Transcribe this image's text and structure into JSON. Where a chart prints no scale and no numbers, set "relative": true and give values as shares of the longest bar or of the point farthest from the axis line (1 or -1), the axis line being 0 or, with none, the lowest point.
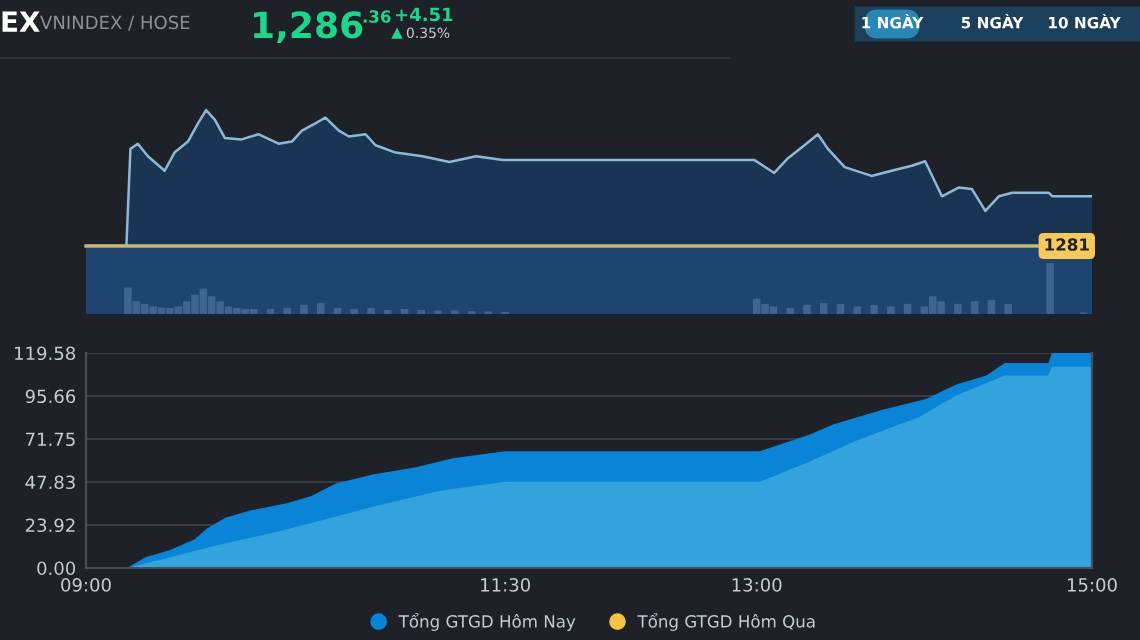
{
  "chart_data": [
    {
      "type": "other",
      "annotations": [
        "EX",
        "VNINDEX / HOSE",
        "1,286",
        ".36",
        "+4.51",
        "0.35%",
        "1 NGÀY",
        "5 NGÀY",
        "10 NGÀY"
      ]
    },
    {
      "type": "line",
      "relative": true,
      "xlim": [
        9,
        15
      ],
      "tick_labels": false,
      "annotations": [
        "1281"
      ],
      "series": [
        {
          "type": "area",
          "color": "#8fb8d6",
          "x": [
            9.0,
            9.241,
            9.265,
            9.309,
            9.369,
            9.469,
            9.528,
            9.608,
            9.668,
            9.716,
            9.768,
            9.828,
            9.928,
            10.028,
            10.148,
            10.228,
            10.288,
            10.368,
            10.428,
            10.508,
            10.568,
            10.667,
            10.727,
            10.847,
            11.007,
            11.167,
            11.327,
            11.487,
            12.985,
            13.105,
            13.185,
            13.285,
            13.365,
            13.425,
            13.525,
            13.685,
            13.805,
            13.925,
            14.005,
            14.105,
            14.204,
            14.284,
            14.364,
            14.444,
            14.524,
            14.743,
            14.764,
            15.0
          ],
          "values": [
            0,
            0,
            0.715,
            0.753,
            0.661,
            0.554,
            0.688,
            0.769,
            0.903,
            1,
            0.93,
            0.796,
            0.785,
            0.823,
            0.753,
            0.769,
            0.849,
            0.903,
            0.946,
            0.849,
            0.806,
            0.823,
            0.742,
            0.688,
            0.661,
            0.618,
            0.661,
            0.634,
            0.634,
            0.538,
            0.645,
            0.742,
            0.823,
            0.715,
            0.581,
            0.516,
            0.554,
            0.591,
            0.624,
            0.366,
            0.43,
            0.419,
            0.258,
            0.366,
            0.392,
            0.392,
            0.366,
            0.366
          ]
        }
      ]
    },
    {
      "type": "bar",
      "relative": true,
      "xlim": [
        9,
        15
      ],
      "tick_labels": false,
      "series": [
        {
          "color": "#3d6590",
          "x": [
            9.25,
            9.3,
            9.35,
            9.4,
            9.45,
            9.5,
            9.55,
            9.6,
            9.65,
            9.7,
            9.75,
            9.8,
            9.85,
            9.9,
            9.95,
            10.0,
            10.1,
            10.2,
            10.3,
            10.4,
            10.5,
            10.6,
            10.7,
            10.8,
            10.9,
            11.0,
            11.1,
            11.2,
            11.3,
            11.4,
            11.5,
            13.0,
            13.05,
            13.1,
            13.2,
            13.3,
            13.4,
            13.5,
            13.6,
            13.7,
            13.8,
            13.9,
            14.0,
            14.05,
            14.1,
            14.2,
            14.3,
            14.4,
            14.5,
            14.75,
            14.95
          ],
          "values": [
            0.52,
            0.25,
            0.2,
            0.15,
            0.13,
            0.12,
            0.15,
            0.25,
            0.38,
            0.5,
            0.35,
            0.25,
            0.15,
            0.12,
            0.1,
            0.1,
            0.1,
            0.12,
            0.18,
            0.22,
            0.12,
            0.1,
            0.12,
            0.08,
            0.1,
            0.08,
            0.07,
            0.07,
            0.06,
            0.05,
            0.04,
            0.3,
            0.2,
            0.15,
            0.12,
            0.18,
            0.22,
            0.2,
            0.15,
            0.18,
            0.15,
            0.2,
            0.15,
            0.35,
            0.25,
            0.2,
            0.25,
            0.28,
            0.2,
            1.0,
            0.03
          ]
        }
      ]
    },
    {
      "type": "area",
      "xlim": [
        9,
        15
      ],
      "ylim": [
        0,
        119.58
      ],
      "grid": "y",
      "legend": "bottom",
      "xticks": [
        {
          "value": 9,
          "label": "09:00"
        },
        {
          "value": 11.5,
          "label": "11:30"
        },
        {
          "value": 13,
          "label": "13:00"
        },
        {
          "value": 15,
          "label": "15:00"
        }
      ],
      "yticks": [
        {
          "value": 0,
          "label": "0.00"
        },
        23.92,
        47.83,
        71.75,
        95.66,
        119.58
      ],
      "series": [
        {
          "name": "Tổng GTGD Hôm Nay",
          "color": "#0a84d6",
          "x": [
            9.0,
            9.245,
            9.355,
            9.502,
            9.648,
            9.721,
            9.831,
            9.978,
            10.198,
            10.344,
            10.49,
            10.71,
            10.967,
            11.187,
            11.5,
            13.02,
            13.31,
            13.46,
            13.75,
            14.01,
            14.19,
            14.37,
            14.48,
            14.74,
            14.76,
            15.0
          ],
          "values": [
            0,
            0,
            6,
            10,
            16,
            22,
            28,
            32,
            36,
            40,
            47,
            52,
            56,
            61,
            65,
            65,
            74,
            80,
            88,
            94,
            102,
            107,
            114,
            114,
            119.58,
            119.58
          ]
        },
        {
          "color": "#33a3dd",
          "x": [
            9.0,
            9.245,
            9.502,
            9.795,
            10.09,
            10.344,
            10.71,
            11.11,
            11.5,
            13.02,
            13.31,
            13.6,
            13.97,
            14.19,
            14.48,
            14.74,
            14.76,
            15.0
          ],
          "values": [
            0,
            0,
            6,
            13,
            19,
            25,
            34,
            43,
            48,
            48,
            59,
            71,
            84,
            96,
            107,
            107,
            112,
            112
          ]
        },
        {
          "name": "Tổng GTGD Hôm Qua",
          "color": "#f5c342"
        }
      ]
    }
  ]
}
